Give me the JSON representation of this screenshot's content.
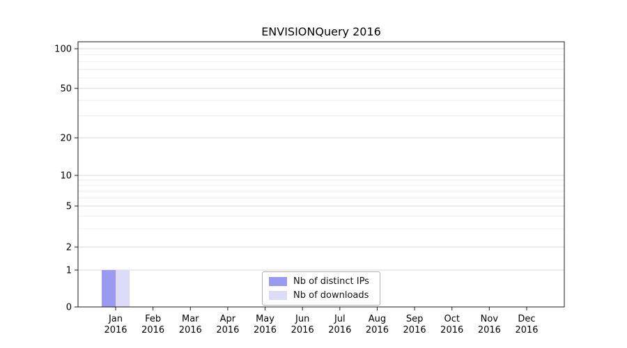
{
  "figure": {
    "background_color": "#ffffff",
    "plot_border_color": "#1a1a1a",
    "major_grid_color": "#d9d9d9",
    "minor_grid_color": "#ececec"
  },
  "chart_data": {
    "type": "bar",
    "title": "ENVISIONQuery 2016",
    "categories": [
      "Jan 2016",
      "Feb 2016",
      "Mar 2016",
      "Apr 2016",
      "May 2016",
      "Jun 2016",
      "Jul 2016",
      "Aug 2016",
      "Sep 2016",
      "Oct 2016",
      "Nov 2016",
      "Dec 2016"
    ],
    "series": [
      {
        "name": "Nb of distinct IPs",
        "color": "#9a9af0",
        "values": [
          1,
          0,
          0,
          0,
          0,
          0,
          0,
          0,
          0,
          0,
          0,
          0
        ]
      },
      {
        "name": "Nb of downloads",
        "color": "#dcdcf9",
        "values": [
          1,
          0,
          0,
          0,
          0,
          0,
          0,
          0,
          0,
          0,
          0,
          0
        ]
      }
    ],
    "xlabel": "",
    "ylabel": "",
    "yscale": "symlog",
    "yticks": [
      0,
      1,
      2,
      5,
      10,
      20,
      50,
      100
    ],
    "ylim": [
      0,
      120
    ],
    "grid": "horizontal",
    "legend_position": "lower-center"
  }
}
